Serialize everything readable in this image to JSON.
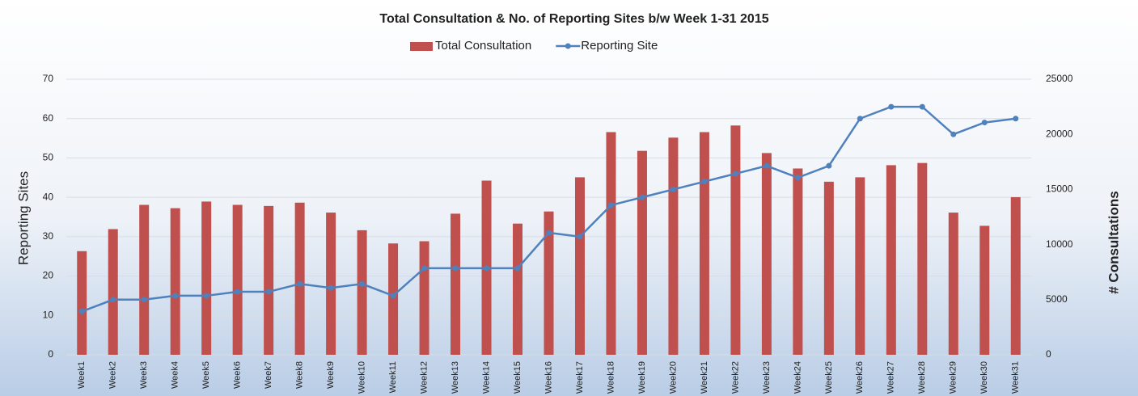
{
  "chart_data": {
    "type": "bar_line",
    "title": "Total Consultation & No. of Reporting Sites b/w Week 1-31 2015",
    "categories": [
      "Week1",
      "Week2",
      "Week3",
      "Week4",
      "Week5",
      "Week6",
      "Week7",
      "Week8",
      "Week9",
      "Week10",
      "Week11",
      "Week12",
      "Week13",
      "Week14",
      "Week15",
      "Week16",
      "Week17",
      "Week18",
      "Week19",
      "Week20",
      "Week21",
      "Week22",
      "Week23",
      "Week24",
      "Week25",
      "Week26",
      "Week27",
      "Week28",
      "Week29",
      "Week30",
      "Week31"
    ],
    "series": [
      {
        "name": "Total Consultation",
        "type": "bar",
        "axis": "y2",
        "color": "#c0504d",
        "values": [
          9400,
          11400,
          13600,
          13300,
          13900,
          13600,
          13500,
          13800,
          12900,
          11300,
          10100,
          10300,
          12800,
          15800,
          11900,
          13000,
          16100,
          20200,
          18500,
          19700,
          20200,
          20800,
          18300,
          16900,
          15700,
          16100,
          17200,
          17400,
          12900,
          11700,
          14300
        ]
      },
      {
        "name": "Reporting Site",
        "type": "line",
        "color": "#4f81bd",
        "values": [
          11,
          14,
          14,
          15,
          15,
          16,
          16,
          18,
          17,
          18,
          15,
          22,
          22,
          22,
          22,
          31,
          30,
          38,
          40,
          42,
          44,
          46,
          48,
          45,
          48,
          60,
          63,
          63,
          56,
          59,
          60
        ]
      }
    ],
    "ylabel": "Reporting Sites",
    "y2label": "# Consultations",
    "ylim": [
      0,
      70
    ],
    "yticks": [
      0,
      10,
      20,
      30,
      40,
      50,
      60,
      70
    ],
    "y2lim": [
      0,
      25000
    ],
    "y2ticks": [
      0,
      5000,
      10000,
      15000,
      20000,
      25000
    ],
    "grid": true,
    "legend": "top"
  }
}
